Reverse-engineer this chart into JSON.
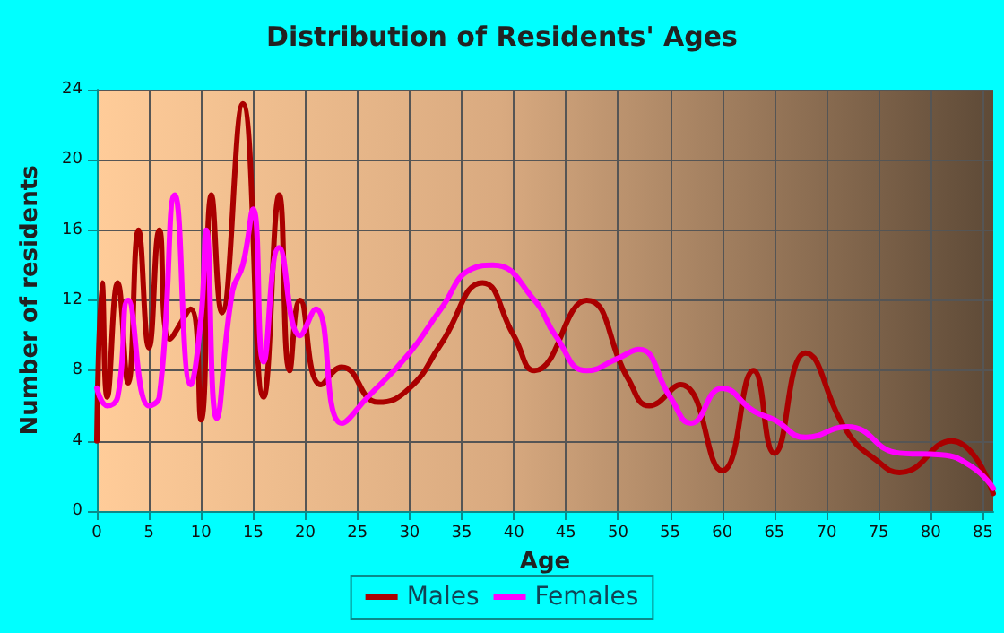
{
  "chart_data": {
    "type": "line",
    "title": "Distribution of Residents' Ages",
    "xlabel": "Age",
    "ylabel": "Number of residents",
    "xlim": [
      0,
      86
    ],
    "xticks": [
      0,
      5,
      10,
      15,
      20,
      25,
      30,
      35,
      40,
      45,
      50,
      55,
      60,
      65,
      70,
      75,
      80,
      85
    ],
    "ylim": [
      0,
      24
    ],
    "yticks": [
      0,
      4,
      8,
      12,
      16,
      20,
      24
    ],
    "grid": true,
    "legend": "bottom",
    "marker": "none",
    "line_style": "solid",
    "series": [
      {
        "name": "Males",
        "color": "#aa0000",
        "x": [
          0,
          0.5,
          1,
          2,
          3,
          4,
          5,
          6,
          7,
          9,
          10,
          11,
          12,
          14,
          16,
          17.5,
          18.5,
          19.5,
          21.5,
          23.5,
          27,
          30,
          33,
          37,
          40,
          42,
          47,
          51,
          53,
          56,
          60,
          63,
          65,
          68,
          72,
          75,
          77,
          82,
          86
        ],
        "values": [
          4,
          13,
          6.5,
          13,
          7.3,
          16,
          9.3,
          16,
          9.8,
          11.5,
          5.2,
          18,
          11.3,
          23.2,
          6.5,
          18,
          8,
          12,
          7.2,
          8.2,
          6.2,
          7,
          9.5,
          13,
          10,
          8,
          12,
          7.5,
          6,
          7.2,
          2.3,
          8,
          3.3,
          9,
          4.5,
          2.8,
          2.2,
          4,
          1
        ]
      },
      {
        "name": "Females",
        "color": "#ff00ff",
        "x": [
          0,
          1,
          2,
          3,
          5,
          6,
          7.5,
          9,
          10,
          10.5,
          11.5,
          13,
          14,
          15,
          16,
          17.5,
          19.5,
          21,
          23.5,
          26,
          30,
          33,
          36,
          38,
          42,
          44,
          47,
          50,
          52,
          55,
          57,
          60,
          63,
          65,
          68,
          72,
          77,
          81,
          84,
          86
        ],
        "values": [
          7,
          6,
          6.5,
          12,
          6,
          6.5,
          18,
          7.2,
          11,
          16,
          5.3,
          12.5,
          14,
          17.2,
          8.5,
          15,
          10,
          11.5,
          5,
          6.5,
          9,
          11.5,
          13.8,
          14,
          12,
          10,
          8,
          8.7,
          9.2,
          6.5,
          5,
          7,
          5.7,
          5.2,
          4.2,
          4.8,
          3.3,
          3.2,
          2.5,
          1.3
        ]
      }
    ]
  }
}
